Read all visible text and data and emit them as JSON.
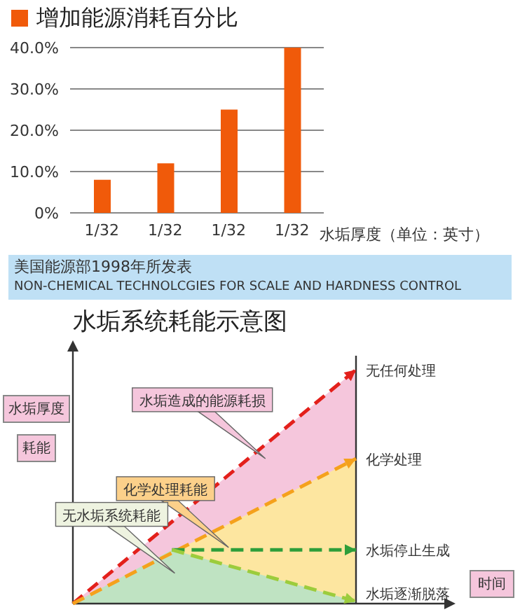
{
  "chart_data": [
    {
      "type": "bar",
      "title": "增加能源消耗百分比",
      "xlabel": "水垢厚度（单位：英寸）",
      "categories": [
        "1/32",
        "1/32",
        "1/32",
        "1/32"
      ],
      "values": [
        8,
        12,
        25,
        40
      ],
      "color": "#f05a0a",
      "ylim": [
        0,
        40
      ],
      "yticks": [
        {
          "value": 0,
          "label": "0%"
        },
        {
          "value": 10,
          "label": "10.0%"
        },
        {
          "value": 20,
          "label": "20.0%"
        },
        {
          "value": 30,
          "label": "30.0%"
        },
        {
          "value": 40,
          "label": "40.0%"
        }
      ],
      "grid": "y",
      "annotations": [
        "美国能源部1998年所发表",
        "NON-CHEMICAL TECHNOLCGIES FOR SCALE AND HARDNESS CONTROL"
      ]
    },
    {
      "type": "other",
      "title": "水垢系统耗能示意图",
      "xlabel": "时间",
      "ylabel": "水垢厚度",
      "annotations": [
        "无任何处理",
        "化学处理",
        "水垢停止生成",
        "水垢逐渐脱落",
        "水垢造成的能源耗损",
        "化学处理耗能",
        "无水垢系统耗能",
        "耗能"
      ]
    }
  ]
}
